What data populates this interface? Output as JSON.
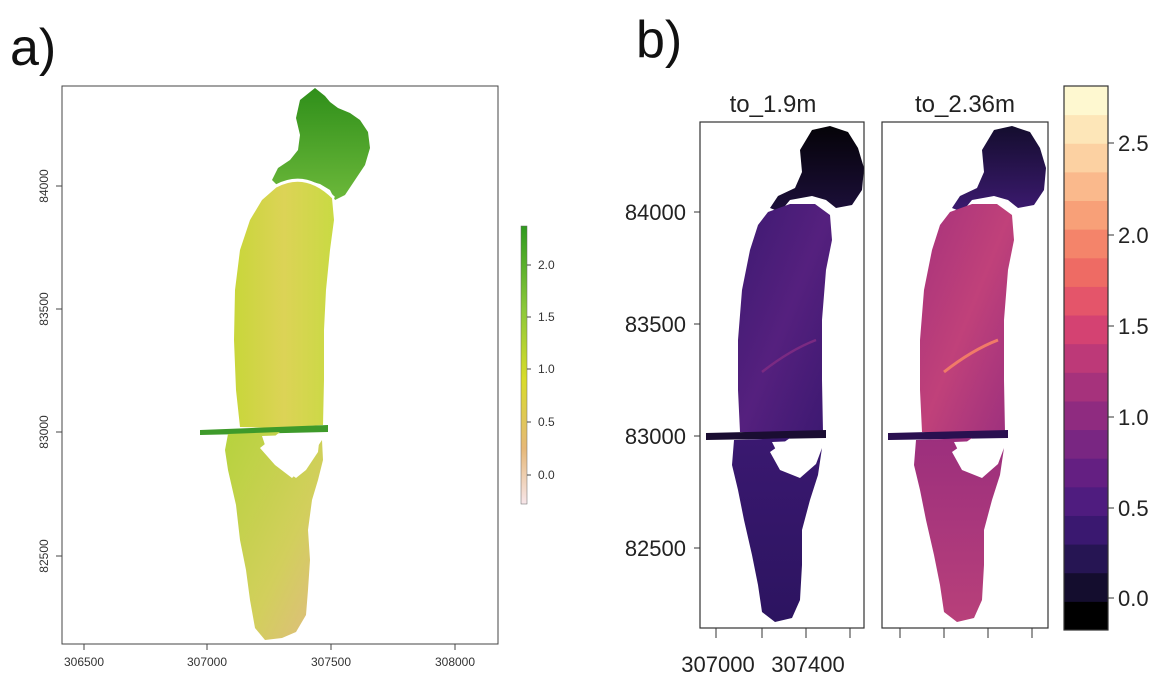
{
  "panel_a": {
    "label": "a)",
    "x_ticks": [
      "306500",
      "307000",
      "307500",
      "308000"
    ],
    "y_ticks": [
      "84000",
      "83500",
      "83000",
      "82500"
    ],
    "colorbar_ticks": [
      "2.0",
      "1.5",
      "1.0",
      "0.5",
      "0.0"
    ],
    "colorbar_colors": [
      "#2f9a1f",
      "#8cc83a",
      "#d8dc2a",
      "#e6b878",
      "#f7e6ea"
    ]
  },
  "panel_b": {
    "label": "b)",
    "strip_titles": [
      "to_1.9m",
      "to_2.36m"
    ],
    "x_ticks": [
      "307000",
      "307400"
    ],
    "y_ticks": [
      "84000",
      "83500",
      "83000",
      "82500"
    ],
    "colorbar_ticks": [
      "2.5",
      "2.0",
      "1.5",
      "1.0",
      "0.5",
      "0.0"
    ],
    "colorbar_colors": [
      "#000000",
      "#140d2e",
      "#261553",
      "#3a1870",
      "#4f1c7f",
      "#641f82",
      "#792682",
      "#8f2b80",
      "#a6327c",
      "#bd3978",
      "#d44272",
      "#e4556a",
      "#ee6b64",
      "#f4846a",
      "#f8a078",
      "#fab98c",
      "#fcd1a2",
      "#fde6b8",
      "#fef8d0"
    ]
  }
}
